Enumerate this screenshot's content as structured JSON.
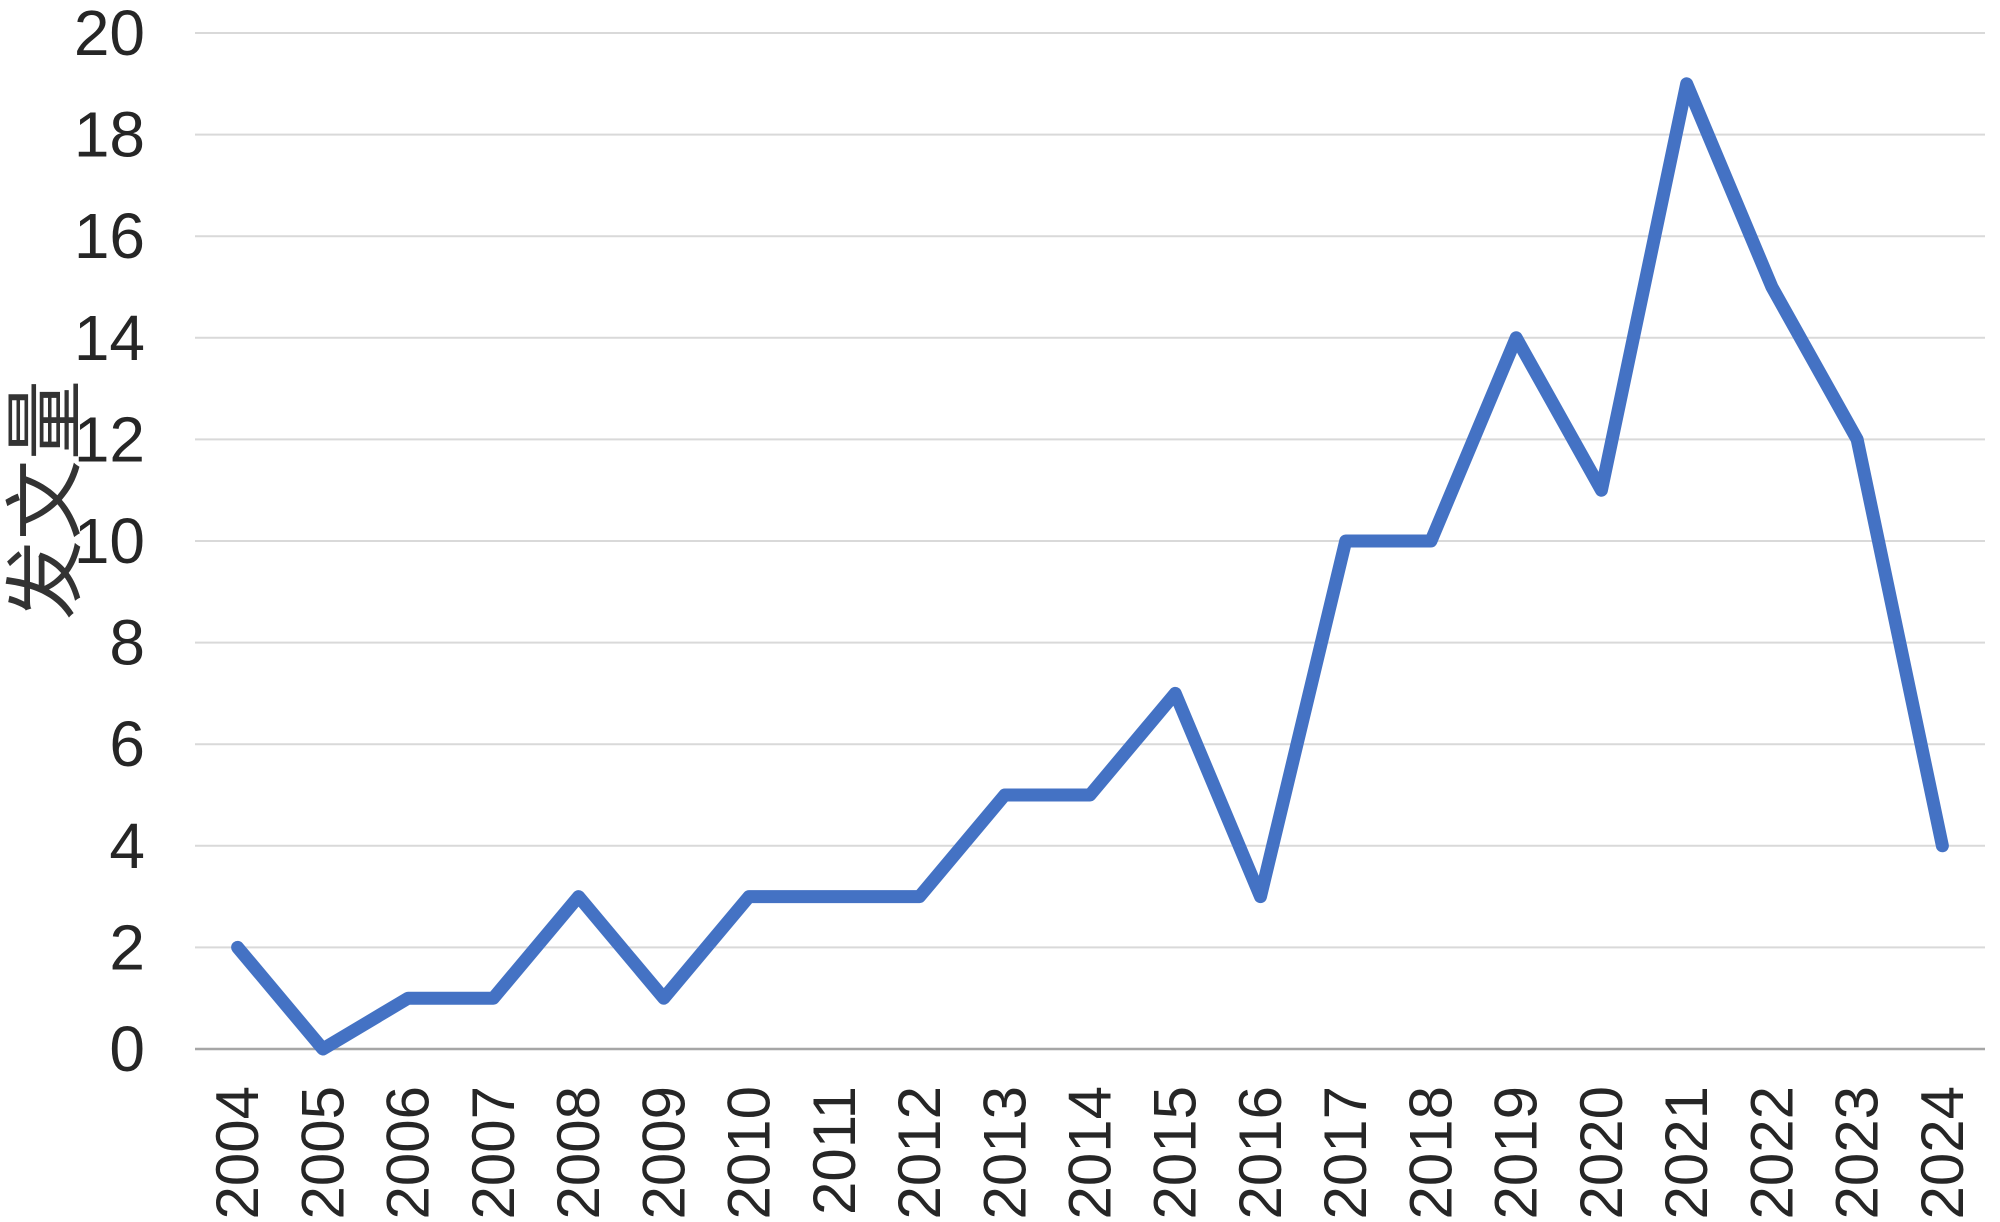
{
  "chart_data": {
    "type": "line",
    "title": "",
    "categories": [
      "2004",
      "2005",
      "2006",
      "2007",
      "2008",
      "2009",
      "2010",
      "2011",
      "2012",
      "2013",
      "2014",
      "2015",
      "2016",
      "2017",
      "2018",
      "2019",
      "2020",
      "2021",
      "2022",
      "2023",
      "2024"
    ],
    "series": [
      {
        "name": "发文量",
        "values": [
          2,
          0,
          1,
          1,
          3,
          1,
          3,
          3,
          3,
          5,
          5,
          7,
          3,
          10,
          10,
          14,
          11,
          19,
          15,
          12,
          4
        ]
      }
    ],
    "xlabel": "",
    "ylabel": "发文量",
    "ylim": [
      0,
      20
    ],
    "ytick_step": 2,
    "ytick_labels": [
      "0",
      "2",
      "4",
      "6",
      "8",
      "10",
      "12",
      "14",
      "16",
      "18",
      "20"
    ],
    "grid": true,
    "legend_position": "none",
    "colors": {
      "line": "#4472C4",
      "gridline": "#D9D9D9",
      "axis_line": "#A6A6A6",
      "tick_label": "#262626",
      "axis_title": "#333333",
      "background": "#FFFFFF"
    }
  }
}
